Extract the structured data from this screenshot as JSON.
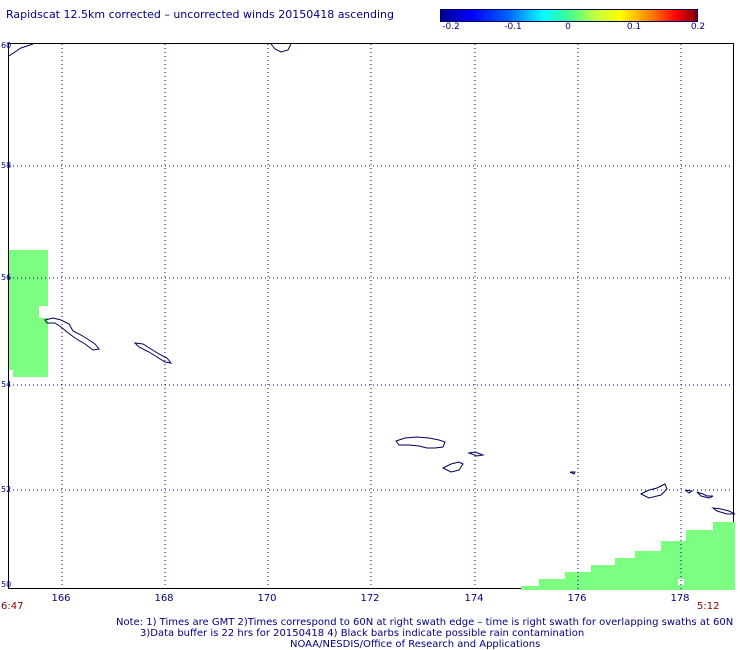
{
  "title": "Rapidscat 12.5km corrected – uncorrected winds 20150418 ascending",
  "colorbar": {
    "labels": [
      "-0.2",
      "-0.1",
      "0",
      "0.1",
      "0.2"
    ],
    "values": [
      -0.2,
      -0.1,
      0,
      0.1,
      0.2
    ]
  },
  "lat_labels": [
    "60",
    "58",
    "56",
    "54",
    "52",
    "50"
  ],
  "lon_labels": [
    "166",
    "168",
    "170",
    "172",
    "174",
    "176",
    "178"
  ],
  "time_left": "6:47",
  "time_right": "5:12",
  "notes": {
    "line1": "Note: 1) Times are GMT 2)Times correspond to 60N at right swath edge – time is right swath for overlapping swaths at 60N",
    "line2": "3)Data buffer is 22 hrs for 20150418 4) Black barbs indicate possible rain contamination",
    "line3": "NOAA/NESDIS/Office of Research and Applications"
  },
  "colors": {
    "swath": "#7cff80",
    "coast": "#000060",
    "grid": "#000080"
  }
}
